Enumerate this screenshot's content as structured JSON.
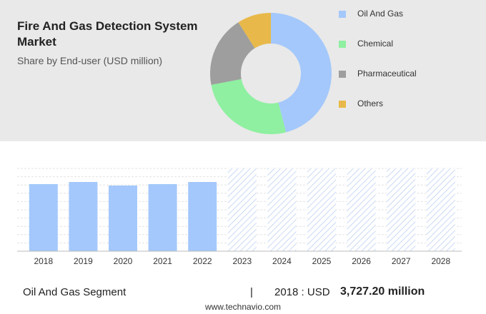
{
  "chart_data": [
    {
      "type": "pie",
      "title": "Fire And Gas Detection System Market",
      "subtitle": "Share by End-user (USD million)",
      "categories": [
        "Oil And Gas",
        "Chemical",
        "Pharmaceutical",
        "Others"
      ],
      "values": [
        46,
        26,
        19,
        9
      ],
      "colors": [
        "#a4c8fb",
        "#8ef0a0",
        "#9e9e9e",
        "#e8b94a"
      ],
      "donut": true
    },
    {
      "type": "bar",
      "categories": [
        "2018",
        "2019",
        "2020",
        "2021",
        "2022",
        "2023",
        "2024",
        "2025",
        "2026",
        "2027",
        "2028"
      ],
      "values": [
        3727.2,
        3846,
        3648,
        3727,
        3846,
        null,
        null,
        null,
        null,
        null,
        null
      ],
      "color": "#a4c8fb"
    }
  ],
  "footer": {
    "segment": "Oil And Gas Segment",
    "separator": "|",
    "year_currency": "2018 : USD",
    "value": "3,727.20 million",
    "website": "www.technavio.com"
  }
}
